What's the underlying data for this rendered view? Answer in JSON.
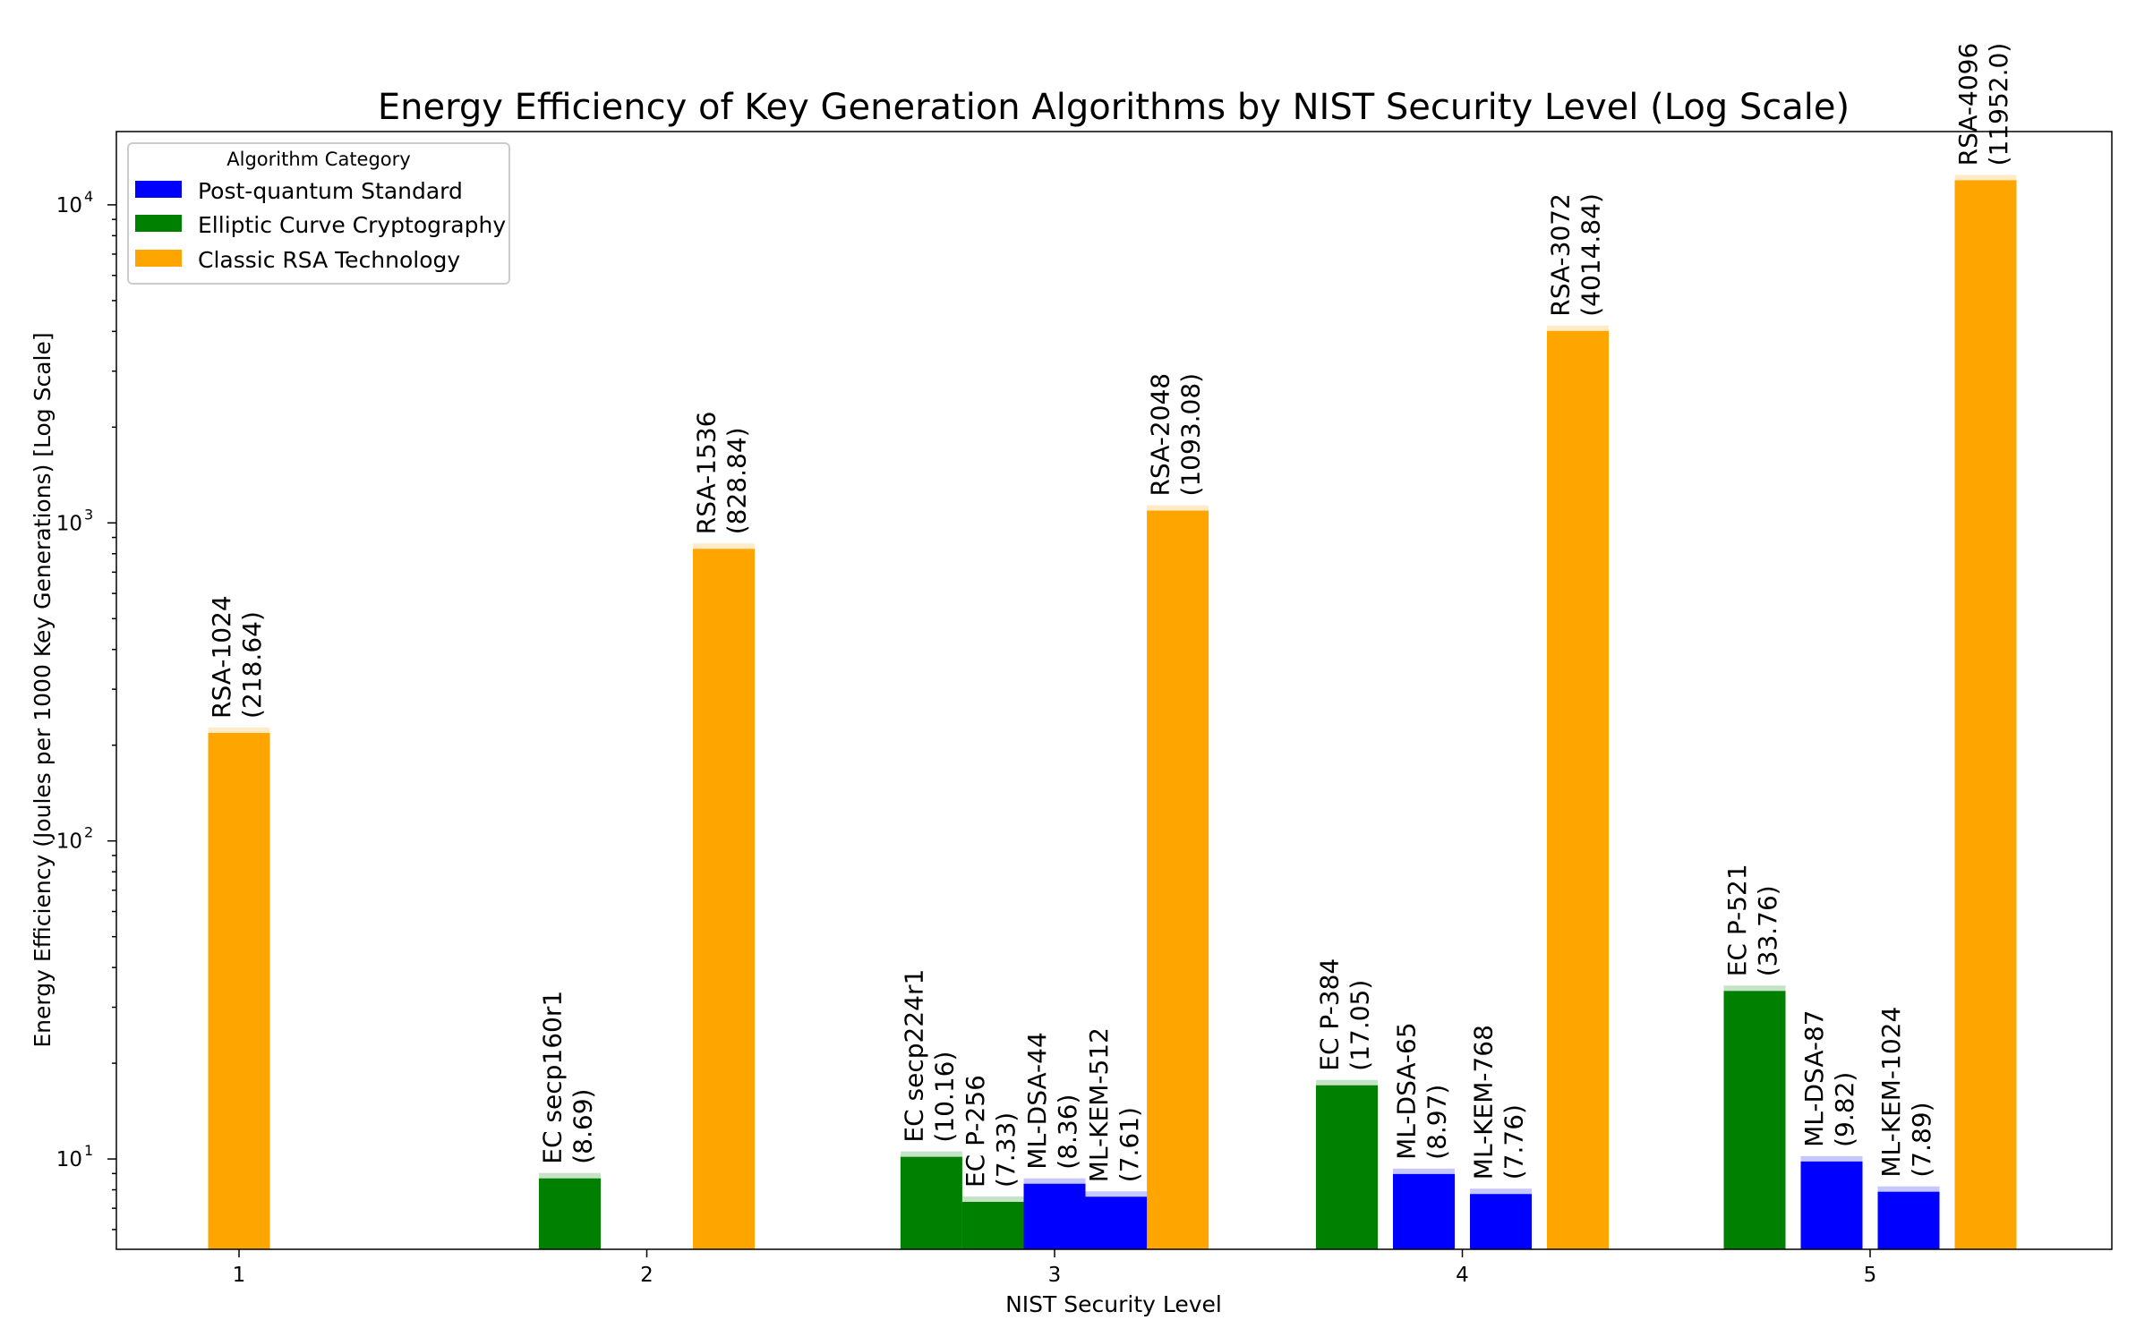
{
  "chart_data": {
    "type": "bar",
    "title": "Energy Efficiency of Key Generation Algorithms by NIST Security Level (Log Scale)",
    "xlabel": "NIST Security Level",
    "ylabel": "Energy Efficiency (Joules per 1000 Key Generations) [Log Scale]",
    "yscale": "log",
    "ylim": [
      5.2,
      17000
    ],
    "y_ticks": [
      {
        "base": "10",
        "exp": "1",
        "value": 10
      },
      {
        "base": "10",
        "exp": "2",
        "value": 100
      },
      {
        "base": "10",
        "exp": "3",
        "value": 1000
      },
      {
        "base": "10",
        "exp": "4",
        "value": 10000
      }
    ],
    "x_ticks": [
      "1",
      "2",
      "3",
      "4",
      "5"
    ],
    "grid": false,
    "legend": {
      "title": "Algorithm Category",
      "placement": "top-left",
      "entries": [
        {
          "name": "Post-quantum Standard",
          "color": "#0000ff"
        },
        {
          "name": "Elliptic Curve Cryptography",
          "color": "#008000"
        },
        {
          "name": "Classic RSA Technology",
          "color": "#ffa500"
        }
      ]
    },
    "bars": [
      {
        "level": 1,
        "name": "RSA-1024",
        "value_label": "(218.64)",
        "value": 218.64,
        "category": "Classic RSA Technology",
        "offset": 0.0
      },
      {
        "level": 2,
        "name": "EC secp160r1",
        "value_label": "(8.69)",
        "value": 8.69,
        "category": "Elliptic Curve Cryptography",
        "offset": -0.2
      },
      {
        "level": 2,
        "name": "RSA-1536",
        "value_label": "(828.84)",
        "value": 828.84,
        "category": "Classic RSA Technology",
        "offset": 0.2
      },
      {
        "level": 3,
        "name": "EC secp224r1",
        "value_label": "(10.16)",
        "value": 10.16,
        "category": "Elliptic Curve Cryptography",
        "offset": -0.32
      },
      {
        "level": 3,
        "name": "EC P-256",
        "value_label": "(7.33)",
        "value": 7.33,
        "category": "Elliptic Curve Cryptography",
        "offset": -0.16
      },
      {
        "level": 3,
        "name": "ML-DSA-44",
        "value_label": "(8.36)",
        "value": 8.36,
        "category": "Post-quantum Standard",
        "offset": 0.0
      },
      {
        "level": 3,
        "name": "ML-KEM-512",
        "value_label": "(7.61)",
        "value": 7.61,
        "category": "Post-quantum Standard",
        "offset": 0.16
      },
      {
        "level": 3,
        "name": "RSA-2048",
        "value_label": "(1093.08)",
        "value": 1093.08,
        "category": "Classic RSA Technology",
        "offset": 0.32
      },
      {
        "level": 4,
        "name": "EC P-384",
        "value_label": "(17.05)",
        "value": 17.05,
        "category": "Elliptic Curve Cryptography",
        "offset": -0.3
      },
      {
        "level": 4,
        "name": "ML-DSA-65",
        "value_label": "(8.97)",
        "value": 8.97,
        "category": "Post-quantum Standard",
        "offset": -0.1
      },
      {
        "level": 4,
        "name": "ML-KEM-768",
        "value_label": "(7.76)",
        "value": 7.76,
        "category": "Post-quantum Standard",
        "offset": 0.1
      },
      {
        "level": 4,
        "name": "RSA-3072",
        "value_label": "(4014.84)",
        "value": 4014.84,
        "category": "Classic RSA Technology",
        "offset": 0.3
      },
      {
        "level": 5,
        "name": "EC P-521",
        "value_label": "(33.76)",
        "value": 33.76,
        "category": "Elliptic Curve Cryptography",
        "offset": -0.3
      },
      {
        "level": 5,
        "name": "ML-DSA-87",
        "value_label": "(9.82)",
        "value": 9.82,
        "category": "Post-quantum Standard",
        "offset": -0.1
      },
      {
        "level": 5,
        "name": "ML-KEM-1024",
        "value_label": "(7.89)",
        "value": 7.89,
        "category": "Post-quantum Standard",
        "offset": 0.1
      },
      {
        "level": 5,
        "name": "RSA-4096",
        "value_label": "(11952.0)",
        "value": 11952.0,
        "category": "Classic RSA Technology",
        "offset": 0.3
      }
    ],
    "colors": {
      "Post-quantum Standard": "#0000ff",
      "Elliptic Curve Cryptography": "#008000",
      "Classic RSA Technology": "#ffa500"
    }
  }
}
